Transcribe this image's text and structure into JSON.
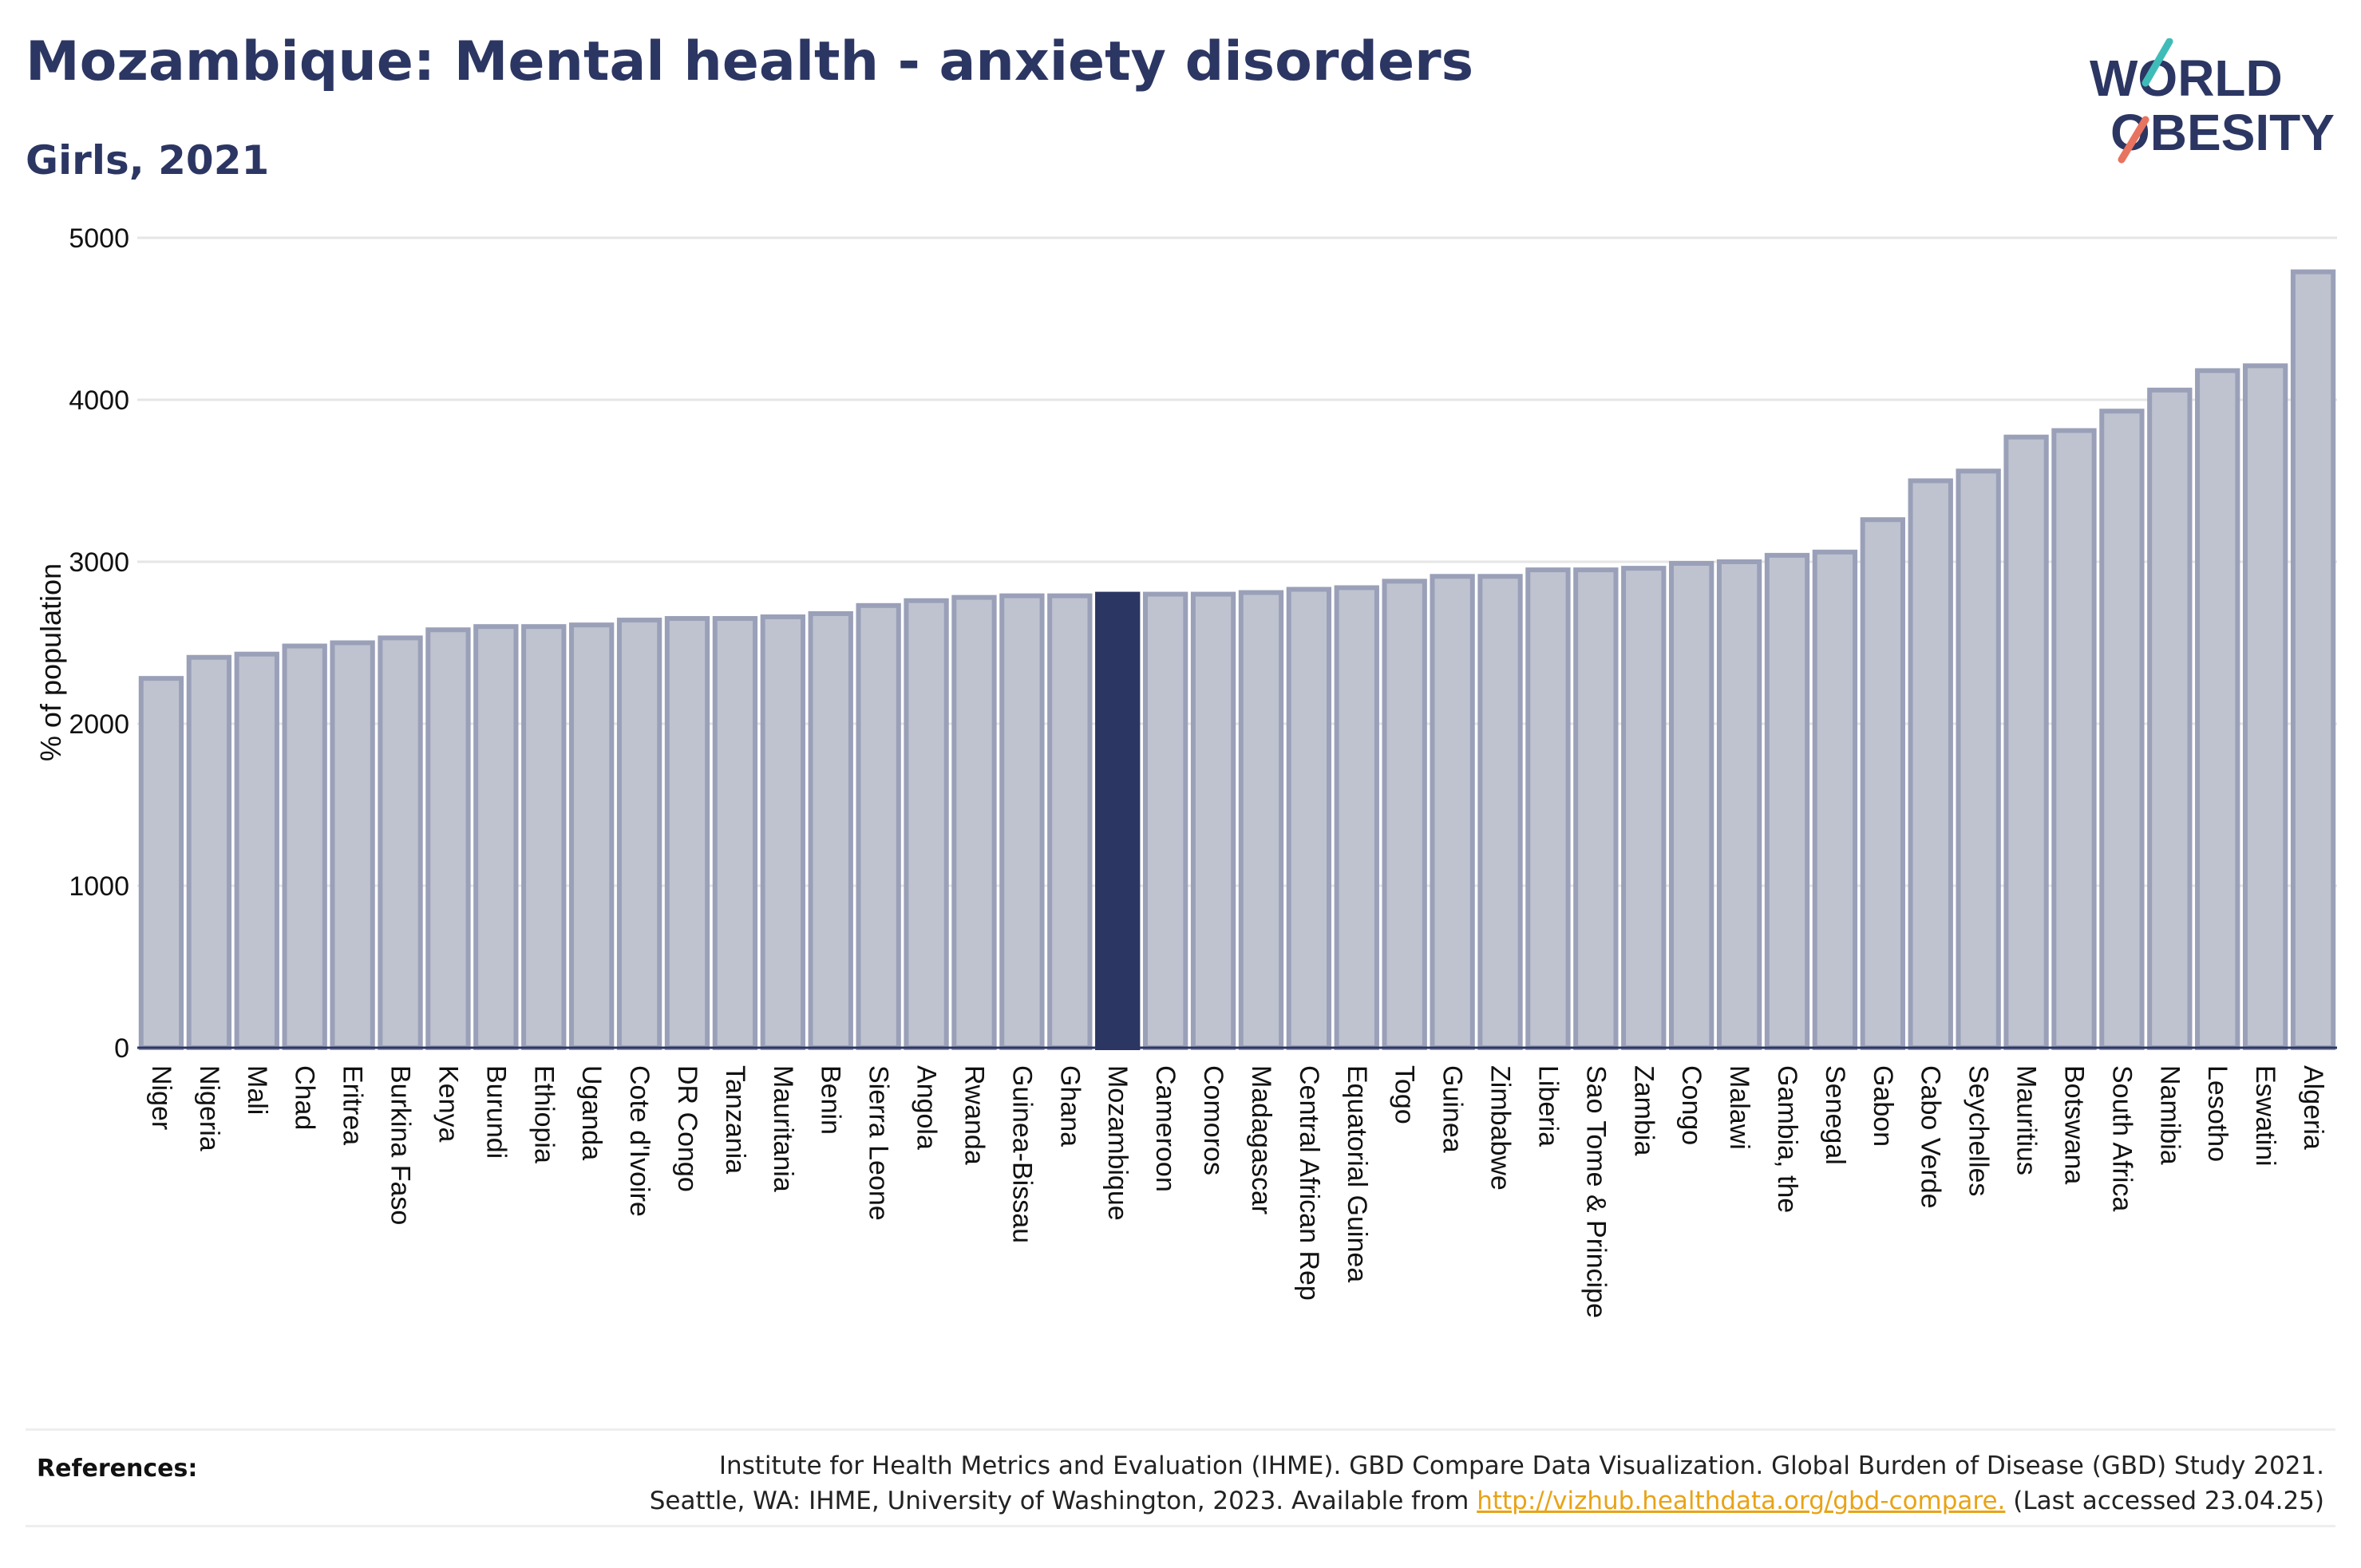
{
  "header": {
    "title": "Mozambique: Mental health - anxiety disorders",
    "subtitle": "Girls, 2021"
  },
  "logo": {
    "line1": "WORLD",
    "line2": "OBESITY"
  },
  "colors": {
    "bar": "#bfc3d0",
    "bar_stroke": "#9aa0b8",
    "highlight": "#2c3663",
    "text": "#2c3663",
    "grid": "#e6e6e6"
  },
  "chart_data": {
    "type": "bar",
    "title": "Mozambique: Mental health - anxiety disorders",
    "subtitle": "Girls, 2021",
    "xlabel": "",
    "ylabel": "% of population",
    "ylim": [
      0,
      5000
    ],
    "yticks": [
      0,
      1000,
      2000,
      3000,
      4000,
      5000
    ],
    "grid": true,
    "highlight": "Mozambique",
    "categories": [
      "Niger",
      "Nigeria",
      "Mali",
      "Chad",
      "Eritrea",
      "Burkina Faso",
      "Kenya",
      "Burundi",
      "Ethiopia",
      "Uganda",
      "Cote d'Ivoire",
      "DR Congo",
      "Tanzania",
      "Mauritania",
      "Benin",
      "Sierra Leone",
      "Angola",
      "Rwanda",
      "Guinea-Bissau",
      "Ghana",
      "Mozambique",
      "Cameroon",
      "Comoros",
      "Madagascar",
      "Central African Rep",
      "Equatorial Guinea",
      "Togo",
      "Guinea",
      "Zimbabwe",
      "Liberia",
      "Sao Tome & Principe",
      "Zambia",
      "Congo",
      "Malawi",
      "Gambia, the",
      "Senegal",
      "Gabon",
      "Cabo Verde",
      "Seychelles",
      "Mauritius",
      "Botswana",
      "South Africa",
      "Namibia",
      "Lesotho",
      "Eswatini",
      "Algeria"
    ],
    "values": [
      2280,
      2410,
      2430,
      2480,
      2500,
      2530,
      2580,
      2600,
      2600,
      2610,
      2640,
      2650,
      2650,
      2660,
      2680,
      2730,
      2760,
      2780,
      2790,
      2790,
      2800,
      2800,
      2800,
      2810,
      2830,
      2840,
      2880,
      2910,
      2910,
      2950,
      2950,
      2960,
      2990,
      3000,
      3040,
      3060,
      3260,
      3500,
      3560,
      3770,
      3810,
      3930,
      4060,
      4180,
      4210,
      4790
    ]
  },
  "references": {
    "label": "References:",
    "line1": "Institute for Health Metrics and Evaluation (IHME). GBD Compare Data Visualization. Global Burden of Disease (GBD) Study 2021.",
    "line2_prefix": "Seattle, WA: IHME, University of Washington, 2023. Available from ",
    "link": "http://vizhub.healthdata.org/gbd-compare.",
    "line2_suffix": " (Last accessed 23.04.25)"
  }
}
